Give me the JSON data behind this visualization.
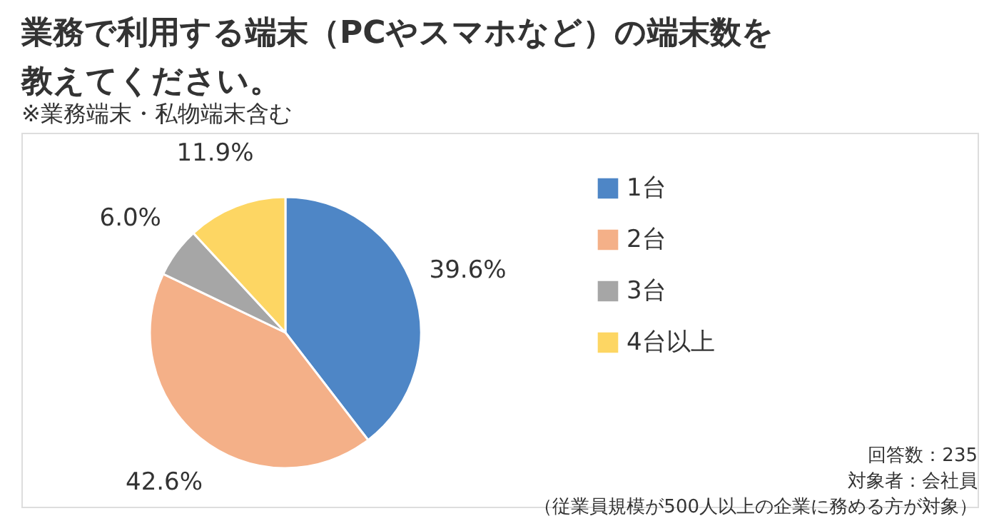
{
  "chart_data": {
    "type": "pie",
    "title": [
      "業務で利用する端末（PCやスマホなど）の端末数を",
      "教えてください。"
    ],
    "subtitle": "※業務端末・私物端末含む",
    "categories": [
      "1台",
      "2台",
      "3台",
      "4台以上"
    ],
    "values": [
      39.6,
      42.6,
      6.0,
      11.9
    ],
    "value_labels": [
      "39.6%",
      "42.6%",
      "6.0%",
      "11.9%"
    ],
    "colors": [
      "#4e86c6",
      "#f4b088",
      "#a6a6a6",
      "#fdd663"
    ],
    "legend": "right",
    "annotations": [
      "回答数：235",
      "対象者：会社員",
      "（従業員規模が500人以上の企業に務める方が対象）"
    ]
  }
}
